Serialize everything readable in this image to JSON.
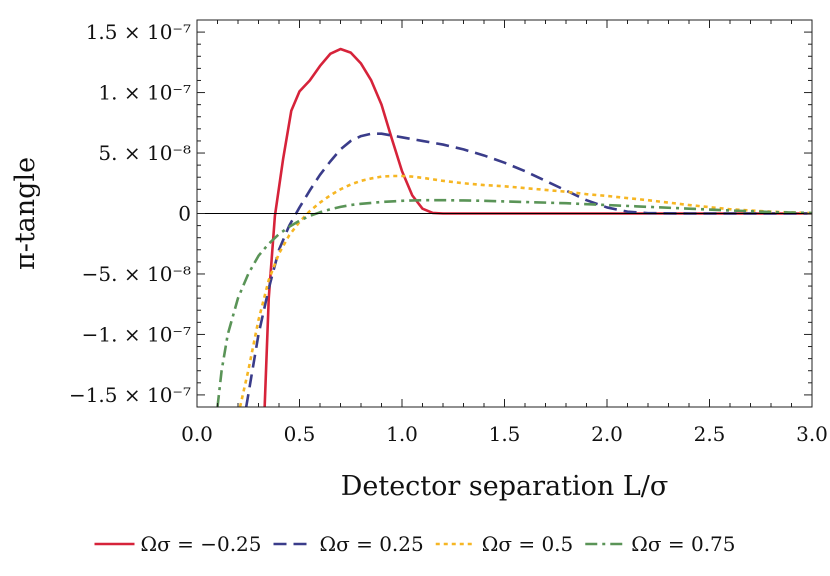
{
  "chart_data": {
    "type": "line",
    "xlabel": "Detector separation  L/σ",
    "ylabel": "π-tangle",
    "xlim": [
      0,
      3
    ],
    "ylim": [
      -1.6e-07,
      1.6e-07
    ],
    "x_ticks": [
      0,
      0.5,
      1.0,
      1.5,
      2.0,
      2.5,
      3.0
    ],
    "x_tick_labels": [
      "0.0",
      "0.5",
      "1.0",
      "1.5",
      "2.0",
      "2.5",
      "3.0"
    ],
    "y_ticks": [
      1.5e-07,
      1e-07,
      5e-08,
      0,
      -5e-08,
      -1e-07,
      -1.5e-07
    ],
    "y_tick_labels": [
      "1.5 × 10⁻⁷",
      "1. × 10⁻⁷",
      "5. × 10⁻⁸",
      "0",
      "−5. × 10⁻⁸",
      "−1. × 10⁻⁷",
      "−1.5 × 10⁻⁷"
    ],
    "legend_position": "bottom",
    "series": [
      {
        "name": "Ωσ = −0.25",
        "color": "#d6233a",
        "style": "solid",
        "x": [
          0.33,
          0.35,
          0.38,
          0.42,
          0.46,
          0.5,
          0.55,
          0.6,
          0.65,
          0.7,
          0.75,
          0.8,
          0.85,
          0.9,
          0.95,
          1.0,
          1.05,
          1.1,
          1.15,
          1.2,
          1.5,
          2.0,
          2.5,
          3.0
        ],
        "y": [
          -1.6e-07,
          -7e-08,
          -2e-09,
          4.5e-08,
          8.5e-08,
          1.01e-07,
          1.1e-07,
          1.22e-07,
          1.32e-07,
          1.36e-07,
          1.33e-07,
          1.24e-07,
          1.1e-07,
          9e-08,
          6.2e-08,
          3.5e-08,
          1.5e-08,
          4e-09,
          5e-10,
          0,
          0,
          0,
          0,
          0
        ]
      },
      {
        "name": "Ωσ = 0.25",
        "color": "#3a3c8a",
        "style": "dashed",
        "x": [
          0.24,
          0.3,
          0.35,
          0.4,
          0.45,
          0.5,
          0.55,
          0.6,
          0.65,
          0.7,
          0.75,
          0.8,
          0.85,
          0.9,
          1.0,
          1.1,
          1.2,
          1.3,
          1.4,
          1.5,
          1.6,
          1.7,
          1.8,
          1.9,
          2.0,
          2.1,
          2.2,
          2.4,
          2.6,
          2.8,
          3.0
        ],
        "y": [
          -1.6e-07,
          -1e-07,
          -6.2e-08,
          -3e-08,
          -1e-08,
          5e-09,
          1.9e-08,
          3.2e-08,
          4.3e-08,
          5.3e-08,
          6e-08,
          6.4e-08,
          6.6e-08,
          6.6e-08,
          6.3e-08,
          6e-08,
          5.7e-08,
          5.3e-08,
          4.8e-08,
          4.2e-08,
          3.5e-08,
          2.7e-08,
          1.9e-08,
          1.1e-08,
          5e-09,
          1.5e-09,
          3e-10,
          0,
          0,
          0,
          0
        ]
      },
      {
        "name": "Ωσ = 0.5",
        "color": "#f6b623",
        "style": "dotted",
        "x": [
          0.21,
          0.25,
          0.3,
          0.35,
          0.4,
          0.45,
          0.5,
          0.55,
          0.6,
          0.65,
          0.7,
          0.75,
          0.8,
          0.85,
          0.9,
          0.95,
          1.0,
          1.05,
          1.1,
          1.2,
          1.3,
          1.4,
          1.5,
          1.6,
          1.7,
          1.8,
          1.9,
          2.0,
          2.2,
          2.4,
          2.6,
          2.8,
          3.0
        ],
        "y": [
          -1.6e-07,
          -1.3e-07,
          -8.8e-08,
          -5.5e-08,
          -3.3e-08,
          -1.8e-08,
          -7e-09,
          2e-09,
          9e-09,
          1.5e-08,
          2e-08,
          2.4e-08,
          2.7e-08,
          2.9e-08,
          3.05e-08,
          3.1e-08,
          3.1e-08,
          3.05e-08,
          2.95e-08,
          2.7e-08,
          2.5e-08,
          2.35e-08,
          2.25e-08,
          2.1e-08,
          1.95e-08,
          1.8e-08,
          1.6e-08,
          1.45e-08,
          1.1e-08,
          7e-09,
          3.5e-09,
          1.5e-09,
          3e-10
        ]
      },
      {
        "name": "Ωσ = 0.75",
        "color": "#5a9457",
        "style": "dashdot",
        "x": [
          0.1,
          0.12,
          0.15,
          0.2,
          0.25,
          0.3,
          0.35,
          0.4,
          0.45,
          0.5,
          0.55,
          0.6,
          0.65,
          0.7,
          0.75,
          0.8,
          0.9,
          1.0,
          1.1,
          1.2,
          1.3,
          1.4,
          1.6,
          1.8,
          2.0,
          2.2,
          2.4,
          2.6,
          2.8,
          3.0
        ],
        "y": [
          -1.6e-07,
          -1.3e-07,
          -1e-07,
          -7e-08,
          -5e-08,
          -3.5e-08,
          -2.5e-08,
          -1.7e-08,
          -1.1e-08,
          -6e-09,
          -2e-09,
          1e-09,
          3.5e-09,
          5.5e-09,
          7e-09,
          8e-09,
          9.5e-09,
          1.05e-08,
          1.1e-08,
          1.1e-08,
          1.08e-08,
          1.05e-08,
          9.5e-09,
          8.5e-09,
          7e-09,
          5.5e-09,
          4e-09,
          2.5e-09,
          1.2e-09,
          4e-10
        ]
      }
    ]
  }
}
